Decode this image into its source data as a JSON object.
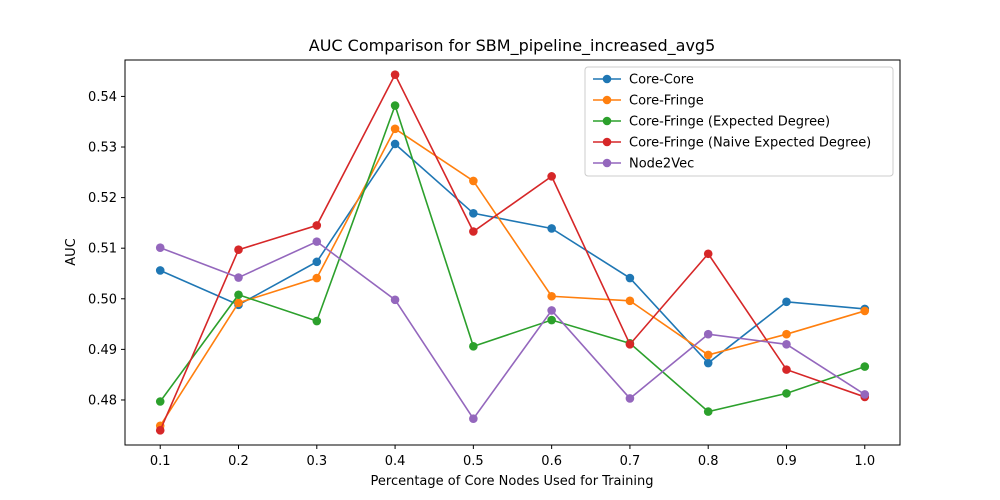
{
  "chart_data": {
    "type": "line",
    "title": "AUC Comparison for SBM_pipeline_increased_avg5",
    "xlabel": "Percentage of Core Nodes Used for Training",
    "ylabel": "AUC",
    "x": [
      0.1,
      0.2,
      0.3,
      0.4,
      0.5,
      0.6,
      0.7,
      0.8,
      0.9,
      1.0
    ],
    "x_tick_labels": [
      "0.1",
      "0.2",
      "0.3",
      "0.4",
      "0.5",
      "0.6",
      "0.7",
      "0.8",
      "0.9",
      "1.0"
    ],
    "y_ticks": [
      0.48,
      0.49,
      0.5,
      0.51,
      0.52,
      0.53,
      0.54
    ],
    "y_tick_labels": [
      "0.48",
      "0.49",
      "0.50",
      "0.51",
      "0.52",
      "0.53",
      "0.54"
    ],
    "xlim": [
      0.055,
      1.045
    ],
    "ylim": [
      0.4711,
      0.5472
    ],
    "grid": false,
    "legend_position": "top-right",
    "series": [
      {
        "name": "Core-Core",
        "color": "#1f77b4",
        "values": [
          0.5056,
          0.4988,
          0.5073,
          0.5306,
          0.5169,
          0.5139,
          0.5041,
          0.4873,
          0.4994,
          0.498
        ]
      },
      {
        "name": "Core-Fringe",
        "color": "#ff7f0e",
        "values": [
          0.4749,
          0.4992,
          0.5041,
          0.5336,
          0.5233,
          0.5005,
          0.4996,
          0.4889,
          0.493,
          0.4976
        ]
      },
      {
        "name": "Core-Fringe (Expected Degree)",
        "color": "#2ca02c",
        "values": [
          0.4797,
          0.5008,
          0.4956,
          0.5382,
          0.4906,
          0.4958,
          0.4912,
          0.4777,
          0.4813,
          0.4866
        ]
      },
      {
        "name": "Core-Fringe (Naive Expected Degree)",
        "color": "#d62728",
        "values": [
          0.474,
          0.5097,
          0.5145,
          0.5443,
          0.5133,
          0.5242,
          0.491,
          0.5089,
          0.486,
          0.4806
        ]
      },
      {
        "name": "Node2Vec",
        "color": "#9467bd",
        "values": [
          0.5101,
          0.5042,
          0.5113,
          0.4998,
          0.4763,
          0.4977,
          0.4803,
          0.493,
          0.491,
          0.4811
        ]
      }
    ]
  }
}
